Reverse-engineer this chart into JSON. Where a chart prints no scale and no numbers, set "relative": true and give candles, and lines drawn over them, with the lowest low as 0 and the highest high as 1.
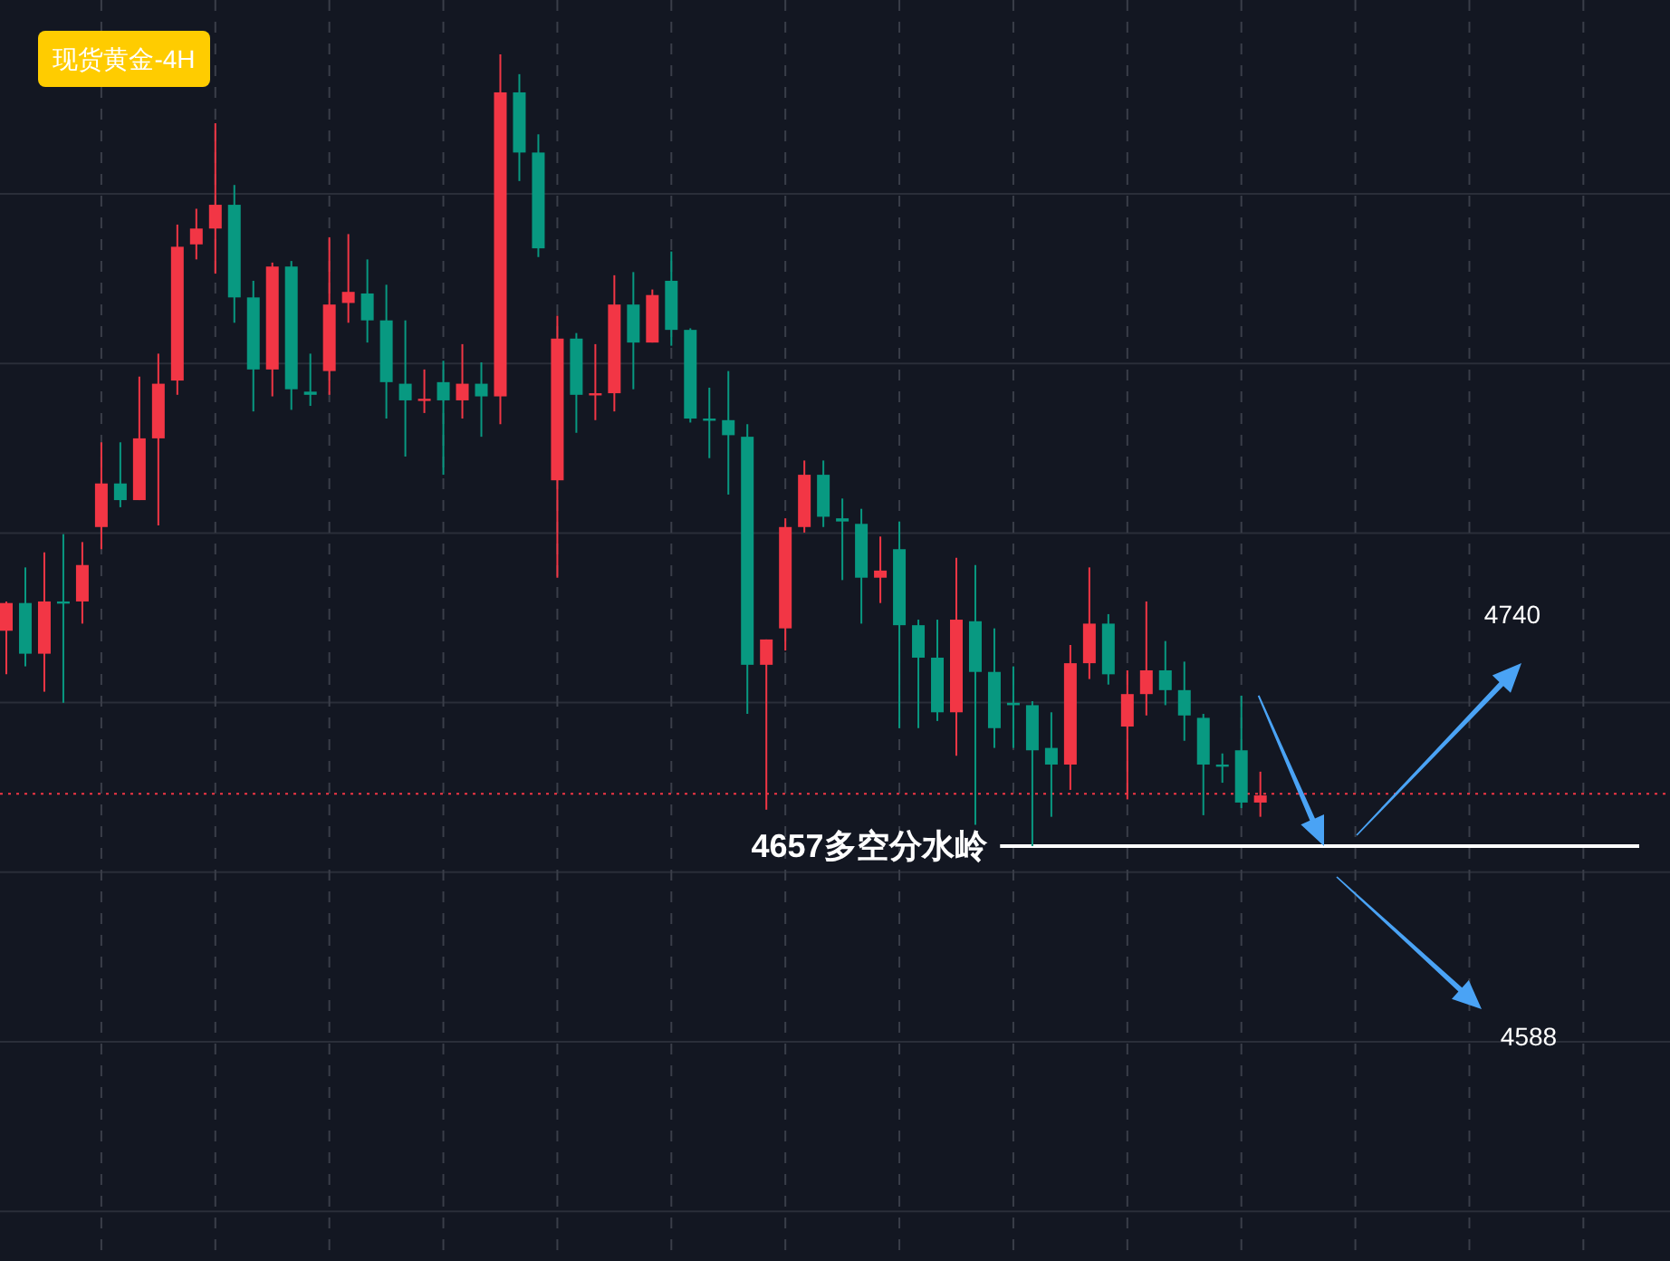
{
  "chart_data": {
    "type": "candlestick",
    "title": "现货黄金-4H",
    "relative": true,
    "grid": true,
    "categories": [
      null,
      null,
      null,
      null,
      null,
      null,
      null,
      null,
      null,
      null,
      null,
      null,
      null,
      null,
      null,
      null,
      null,
      null,
      null,
      null,
      null,
      null,
      null,
      null,
      null,
      null,
      null,
      null,
      null,
      null,
      null,
      null,
      null,
      null,
      null,
      null,
      null,
      null,
      null,
      null,
      null,
      null,
      null,
      null,
      null,
      null,
      null,
      null,
      null,
      null,
      null,
      null,
      null,
      null,
      null,
      null,
      null,
      null,
      null,
      null,
      null,
      null,
      null,
      null,
      null,
      null,
      null
    ],
    "ohlc": [
      [
        0.272,
        0.309,
        0.217,
        0.307
      ],
      [
        0.307,
        0.352,
        0.227,
        0.243
      ],
      [
        0.243,
        0.371,
        0.195,
        0.309
      ],
      [
        0.309,
        0.394,
        0.181,
        0.307
      ],
      [
        0.309,
        0.384,
        0.281,
        0.355
      ],
      [
        0.403,
        0.51,
        0.375,
        0.458
      ],
      [
        0.458,
        0.51,
        0.428,
        0.437
      ],
      [
        0.437,
        0.593,
        0.437,
        0.515
      ],
      [
        0.515,
        0.622,
        0.405,
        0.584
      ],
      [
        0.588,
        0.785,
        0.57,
        0.757
      ],
      [
        0.76,
        0.805,
        0.741,
        0.78
      ],
      [
        0.78,
        0.913,
        0.723,
        0.81
      ],
      [
        0.81,
        0.835,
        0.661,
        0.693
      ],
      [
        0.693,
        0.714,
        0.549,
        0.602
      ],
      [
        0.602,
        0.737,
        0.568,
        0.732
      ],
      [
        0.732,
        0.739,
        0.551,
        0.577
      ],
      [
        0.574,
        0.622,
        0.556,
        0.57
      ],
      [
        0.6,
        0.769,
        0.57,
        0.684
      ],
      [
        0.686,
        0.773,
        0.661,
        0.7
      ],
      [
        0.698,
        0.741,
        0.636,
        0.664
      ],
      [
        0.664,
        0.709,
        0.54,
        0.586
      ],
      [
        0.584,
        0.664,
        0.492,
        0.563
      ],
      [
        0.563,
        0.602,
        0.547,
        0.565
      ],
      [
        0.586,
        0.613,
        0.469,
        0.563
      ],
      [
        0.563,
        0.634,
        0.54,
        0.584
      ],
      [
        0.584,
        0.611,
        0.517,
        0.568
      ],
      [
        0.568,
        1,
        0.533,
        0.952
      ],
      [
        0.952,
        0.975,
        0.84,
        0.876
      ],
      [
        0.876,
        0.899,
        0.744,
        0.755
      ],
      [
        0.462,
        0.67,
        0.339,
        0.641
      ],
      [
        0.641,
        0.648,
        0.522,
        0.57
      ],
      [
        0.57,
        0.634,
        0.538,
        0.572
      ],
      [
        0.572,
        0.721,
        0.549,
        0.684
      ],
      [
        0.684,
        0.725,
        0.577,
        0.636
      ],
      [
        0.636,
        0.703,
        0.636,
        0.696
      ],
      [
        0.714,
        0.751,
        0.632,
        0.652
      ],
      [
        0.652,
        0.654,
        0.535,
        0.54
      ],
      [
        0.54,
        0.579,
        0.49,
        0.538
      ],
      [
        0.538,
        0.6,
        0.444,
        0.519
      ],
      [
        0.517,
        0.533,
        0.167,
        0.229
      ],
      [
        0.229,
        0.261,
        0.046,
        0.261
      ],
      [
        0.275,
        0.414,
        0.247,
        0.403
      ],
      [
        0.403,
        0.487,
        0.396,
        0.469
      ],
      [
        0.469,
        0.487,
        0.403,
        0.416
      ],
      [
        0.414,
        0.439,
        0.336,
        0.41
      ],
      [
        0.407,
        0.426,
        0.281,
        0.339
      ],
      [
        0.339,
        0.391,
        0.307,
        0.348
      ],
      [
        0.375,
        0.41,
        0.149,
        0.279
      ],
      [
        0.279,
        0.286,
        0.149,
        0.238
      ],
      [
        0.238,
        0.286,
        0.158,
        0.169
      ],
      [
        0.169,
        0.364,
        0.114,
        0.286
      ],
      [
        0.284,
        0.355,
        0.027,
        0.22
      ],
      [
        0.22,
        0.275,
        0.124,
        0.149
      ],
      [
        0.181,
        0.227,
        0.124,
        0.178
      ],
      [
        0.178,
        0.183,
        0,
        0.121
      ],
      [
        0.124,
        0.169,
        0.037,
        0.103
      ],
      [
        0.103,
        0.254,
        0.071,
        0.231
      ],
      [
        0.231,
        0.352,
        0.211,
        0.281
      ],
      [
        0.281,
        0.293,
        0.204,
        0.217
      ],
      [
        0.151,
        0.222,
        0.059,
        0.192
      ],
      [
        0.192,
        0.309,
        0.165,
        0.222
      ],
      [
        0.222,
        0.259,
        0.178,
        0.197
      ],
      [
        0.197,
        0.233,
        0.133,
        0.165
      ],
      [
        0.162,
        0.167,
        0.039,
        0.103
      ],
      [
        0.103,
        0.117,
        0.08,
        0.101
      ],
      [
        0.121,
        0.19,
        0.048,
        0.055
      ],
      [
        0.055,
        0.094,
        0.037,
        0.064
      ]
    ],
    "colors": [
      "#f23645",
      "#089981",
      "#f23645",
      "#089981",
      "#f23645",
      "#f23645",
      "#089981",
      "#f23645",
      "#f23645",
      "#f23645",
      "#f23645",
      "#f23645",
      "#089981",
      "#089981",
      "#f23645",
      "#089981",
      "#089981",
      "#f23645",
      "#f23645",
      "#089981",
      "#089981",
      "#089981",
      "#f23645",
      "#089981",
      "#f23645",
      "#089981",
      "#f23645",
      "#089981",
      "#089981",
      "#f23645",
      "#089981",
      "#f23645",
      "#f23645",
      "#089981",
      "#f23645",
      "#089981",
      "#089981",
      "#089981",
      "#089981",
      "#089981",
      "#f23645",
      "#f23645",
      "#f23645",
      "#089981",
      "#089981",
      "#089981",
      "#f23645",
      "#089981",
      "#089981",
      "#089981",
      "#f23645",
      "#089981",
      "#089981",
      "#089981",
      "#089981",
      "#089981",
      "#f23645",
      "#f23645",
      "#089981",
      "#f23645",
      "#f23645",
      "#089981",
      "#089981",
      "#089981",
      "#089981",
      "#089981",
      "#f23645"
    ],
    "ref_lines": [
      {
        "axis": "y",
        "value": 0,
        "label": "4657多空分水岭",
        "color": "#ffffff",
        "line_style": "solid"
      },
      {
        "axis": "y",
        "value": 0.066,
        "color": "#f23645",
        "line_style": "dotted"
      }
    ],
    "annotations": [
      "4740",
      "4588"
    ]
  }
}
